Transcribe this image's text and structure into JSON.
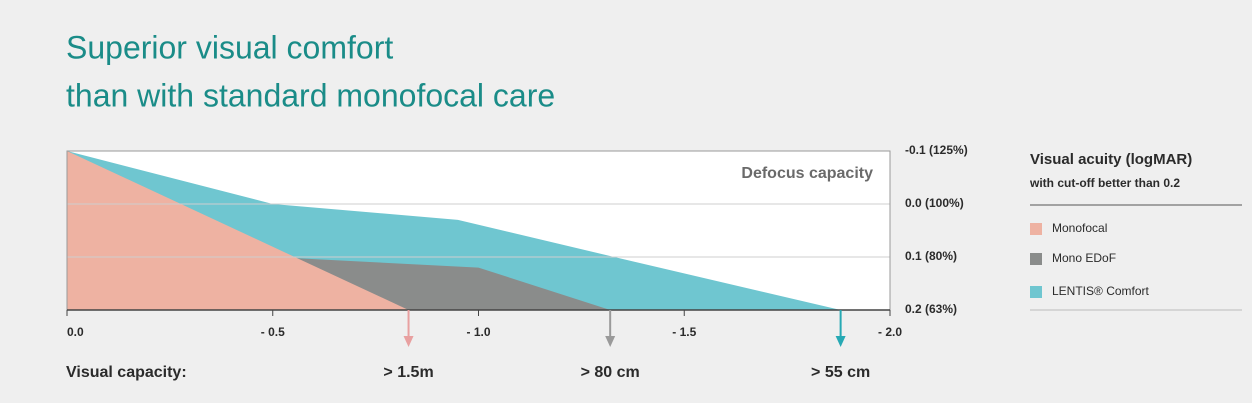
{
  "chart_data": {
    "type": "area",
    "title_lines": [
      "Superior visual comfort",
      "than with standard monofocal care"
    ],
    "annotation": "Defocus capacity",
    "x_caption": "Visual capacity:",
    "legend_title": "Visual acuity (logMAR)",
    "legend_subtitle": "with cut-off better than 0.2",
    "xlim": [
      0,
      -2.0
    ],
    "ylim": [
      0.2,
      -0.1
    ],
    "xticks": [
      {
        "value": 0,
        "label": "0.0"
      },
      {
        "value": -0.5,
        "label": "- 0.5"
      },
      {
        "value": -1.0,
        "label": "- 1.0"
      },
      {
        "value": -1.5,
        "label": "- 1.5"
      },
      {
        "value": -2.0,
        "label": "- 2.0"
      }
    ],
    "yticks": [
      {
        "value": -0.1,
        "label": "-0.1 (125%)"
      },
      {
        "value": 0,
        "label": "0.0 (100%)"
      },
      {
        "value": 0.1,
        "label": "0.1 (80%)"
      },
      {
        "value": 0.2,
        "label": "0.2 (63%)"
      }
    ],
    "grid": true,
    "series": [
      {
        "name": "Monofocal",
        "color": "#eeb2a2",
        "x": [
          0,
          -0.83
        ],
        "values": [
          -0.1,
          0.2
        ]
      },
      {
        "name": "Mono EDoF",
        "color": "#8a8c8b",
        "x": [
          0,
          -0.5,
          -1.0,
          -1.32
        ],
        "values": [
          -0.1,
          0.1,
          0.12,
          0.2
        ]
      },
      {
        "name": "LENTIS® Comfort",
        "color": "#6fc6d0",
        "x": [
          0,
          -0.5,
          -0.95,
          -1.33,
          -1.88
        ],
        "values": [
          -0.1,
          0,
          0.03,
          0.1,
          0.2
        ]
      }
    ],
    "thresholds": [
      {
        "x": -0.83,
        "label": "> 1.5m",
        "color": "#e8a0a0"
      },
      {
        "x": -1.32,
        "label": "> 80 cm",
        "color": "#9a9a9a"
      },
      {
        "x": -1.88,
        "label": "> 55 cm",
        "color": "#27a9b4"
      }
    ]
  }
}
